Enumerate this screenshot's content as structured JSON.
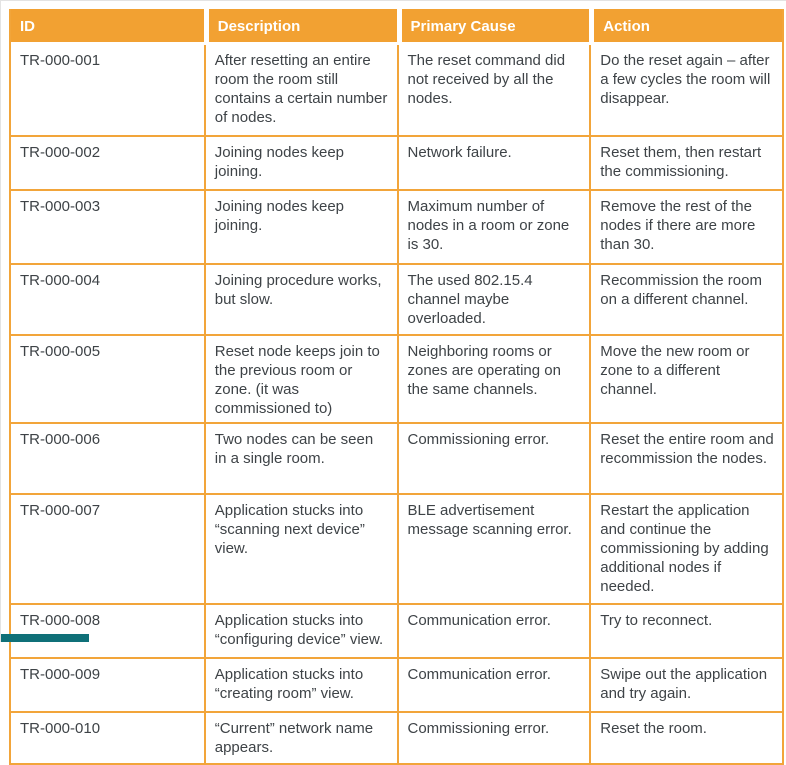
{
  "page": {
    "accent_color": "#f2a132",
    "grid_color": "#f2a53a",
    "text_color": "#3e4347",
    "footer_bar_color": "#0f7078"
  },
  "table": {
    "headers": [
      "ID",
      "Description",
      "Primary Cause",
      "Action"
    ],
    "rows": [
      {
        "id": "TR-000-001",
        "description": "After resetting an entire room the room still contains a certain number of nodes.",
        "primary_cause": "The reset command did not received by all the nodes.",
        "action": "Do the reset again – after a few cycles the room will disappear."
      },
      {
        "id": "TR-000-002",
        "description": "Joining nodes keep joining.",
        "primary_cause": "Network failure.",
        "action": "Reset them, then restart the commissioning."
      },
      {
        "id": "TR-000-003",
        "description": "Joining nodes keep joining.",
        "primary_cause": "Maximum number of nodes in a room or zone is 30.",
        "action": "Remove the rest of the nodes if there are more than 30."
      },
      {
        "id": "TR-000-004",
        "description": "Joining procedure works, but slow.",
        "primary_cause": "The used 802.15.4 channel maybe overloaded.",
        "action": "Recommission the room on a different channel."
      },
      {
        "id": "TR-000-005",
        "description": "Reset node keeps join to the previous room or zone. (it was commissioned to)",
        "primary_cause": "Neighboring rooms or zones are operating on the same channels.",
        "action": "Move the new room or zone to a different channel."
      },
      {
        "id": "TR-000-006",
        "description": "Two nodes can be seen in a single room.",
        "primary_cause": "Commissioning error.",
        "action": "Reset the entire room and recommission the nodes."
      },
      {
        "id": "TR-000-007",
        "description": "Application stucks into “scanning next device” view.",
        "primary_cause": "BLE advertisement message scanning error.",
        "action": "Restart the application and continue the commissioning by adding additional nodes if needed."
      },
      {
        "id": "TR-000-008",
        "description": "Application stucks into “configuring device” view.",
        "primary_cause": "Communication error.",
        "action": "Try to reconnect."
      },
      {
        "id": "TR-000-009",
        "description": "Application stucks into “creating room” view.",
        "primary_cause": "Communication error.",
        "action": "Swipe out the application and try again."
      },
      {
        "id": "TR-000-010",
        "description": "“Current” network name appears.",
        "primary_cause": "Commissioning error.",
        "action": "Reset the room."
      }
    ]
  }
}
